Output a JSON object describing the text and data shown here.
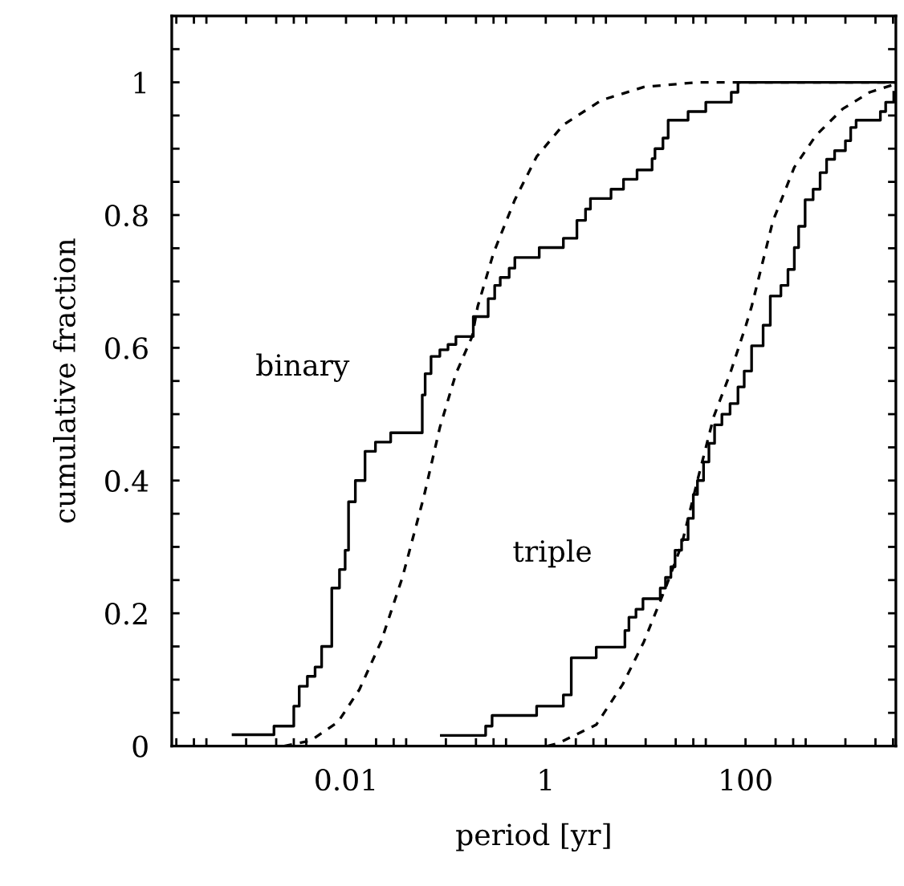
{
  "chart_data": {
    "type": "step",
    "log": "x",
    "xlabel": "period [yr]",
    "ylabel": "cumulative fraction",
    "xlim": [
      0.00018,
      3200
    ],
    "ylim": [
      0,
      1.1
    ],
    "xticks": [
      {
        "value": 0.0002,
        "label": null
      },
      {
        "value": 0.0003,
        "label": null
      },
      {
        "value": 0.0004,
        "label": null
      },
      {
        "value": 0.001,
        "label": null
      },
      {
        "value": 0.002,
        "label": null
      },
      {
        "value": 0.003,
        "label": null
      },
      {
        "value": 0.004,
        "label": null
      },
      0.01,
      {
        "value": 0.02,
        "label": null
      },
      {
        "value": 0.03,
        "label": null
      },
      {
        "value": 0.04,
        "label": null
      },
      {
        "value": 0.1,
        "label": null
      },
      {
        "value": 0.2,
        "label": null
      },
      {
        "value": 0.3,
        "label": null
      },
      {
        "value": 0.4,
        "label": null
      },
      1,
      {
        "value": 2,
        "label": null
      },
      {
        "value": 3,
        "label": null
      },
      {
        "value": 4,
        "label": null
      },
      {
        "value": 10,
        "label": null
      },
      {
        "value": 20,
        "label": null
      },
      {
        "value": 30,
        "label": null
      },
      {
        "value": 40,
        "label": null
      },
      100,
      {
        "value": 200,
        "label": null
      },
      {
        "value": 300,
        "label": null
      },
      {
        "value": 400,
        "label": null
      },
      {
        "value": 1000,
        "label": null
      },
      {
        "value": 2000,
        "label": null
      },
      {
        "value": 3000,
        "label": null
      }
    ],
    "yticks": [
      0,
      {
        "value": 0.05,
        "label": null
      },
      {
        "value": 0.1,
        "label": null
      },
      {
        "value": 0.15,
        "label": null
      },
      0.2,
      {
        "value": 0.25,
        "label": null
      },
      {
        "value": 0.3,
        "label": null
      },
      {
        "value": 0.35,
        "label": null
      },
      0.4,
      {
        "value": 0.45,
        "label": null
      },
      {
        "value": 0.5,
        "label": null
      },
      {
        "value": 0.55,
        "label": null
      },
      0.6,
      {
        "value": 0.65,
        "label": null
      },
      {
        "value": 0.7,
        "label": null
      },
      {
        "value": 0.75,
        "label": null
      },
      0.8,
      {
        "value": 0.85,
        "label": null
      },
      {
        "value": 0.9,
        "label": null
      },
      {
        "value": 0.95,
        "label": null
      },
      1,
      {
        "value": 1.05,
        "label": null
      }
    ],
    "grid": false,
    "series": [
      {
        "name": "binary",
        "line_style": "solid",
        "color": "#000000",
        "x": [
          0.00074,
          0.0019,
          0.003,
          0.0034,
          0.0041,
          0.0049,
          0.0057,
          0.0072,
          0.0086,
          0.0098,
          0.0106,
          0.0124,
          0.0155,
          0.0197,
          0.028,
          0.058,
          0.062,
          0.071,
          0.087,
          0.105,
          0.126,
          0.188,
          0.265,
          0.308,
          0.35,
          0.43,
          0.49,
          0.86,
          1.5,
          2.05,
          2.5,
          2.8,
          4.5,
          6.0,
          8.2,
          11.6,
          12.4,
          14.9,
          16.8,
          26.6,
          40,
          72,
          84,
          3200
        ],
        "values": [
          0.017,
          0.03,
          0.06,
          0.09,
          0.105,
          0.119,
          0.15,
          0.238,
          0.266,
          0.295,
          0.368,
          0.4,
          0.444,
          0.458,
          0.472,
          0.529,
          0.561,
          0.587,
          0.597,
          0.605,
          0.617,
          0.647,
          0.674,
          0.694,
          0.706,
          0.72,
          0.736,
          0.751,
          0.765,
          0.792,
          0.809,
          0.825,
          0.839,
          0.854,
          0.868,
          0.885,
          0.9,
          0.916,
          0.943,
          0.956,
          0.97,
          0.985,
          1.0,
          1.0
        ]
      },
      {
        "name": "triple",
        "line_style": "solid",
        "color": "#000000",
        "x": [
          0.09,
          0.25,
          0.29,
          0.81,
          1.5,
          1.8,
          3.2,
          6.2,
          6.8,
          8.0,
          9.4,
          14,
          15.8,
          17.9,
          19.7,
          22.9,
          26.6,
          30,
          33,
          38,
          43,
          49,
          58,
          70,
          84,
          97,
          115,
          150,
          177,
          226,
          266,
          308,
          340,
          395,
          475,
          558,
          648,
          780,
          1000,
          1130,
          1280,
          2240,
          2530,
          3050
        ],
        "values": [
          0.016,
          0.03,
          0.046,
          0.06,
          0.077,
          0.133,
          0.149,
          0.174,
          0.194,
          0.206,
          0.222,
          0.238,
          0.254,
          0.27,
          0.295,
          0.311,
          0.343,
          0.379,
          0.4,
          0.428,
          0.456,
          0.484,
          0.5,
          0.516,
          0.541,
          0.565,
          0.603,
          0.634,
          0.678,
          0.694,
          0.718,
          0.751,
          0.783,
          0.823,
          0.839,
          0.864,
          0.884,
          0.897,
          0.912,
          0.932,
          0.943,
          0.956,
          0.97,
          0.985
        ]
      },
      {
        "type": "line",
        "line_style": "dashed",
        "color": "#000000",
        "x": [
          0.0024,
          0.0044,
          0.0083,
          0.0136,
          0.0224,
          0.0367,
          0.06,
          0.087,
          0.126,
          0.183,
          0.208,
          0.3,
          0.49,
          0.81,
          1.5,
          3.6,
          9.6,
          33,
          3200
        ],
        "values": [
          0,
          0.008,
          0.036,
          0.085,
          0.157,
          0.254,
          0.375,
          0.48,
          0.561,
          0.617,
          0.662,
          0.743,
          0.823,
          0.888,
          0.936,
          0.973,
          0.993,
          1.0,
          1.0
        ]
      },
      {
        "type": "line",
        "line_style": "dashed",
        "color": "#000000",
        "x": [
          1.04,
          1.33,
          3.2,
          5.9,
          9.6,
          15.8,
          22.9,
          33,
          48,
          70,
          101,
          115,
          188,
          308,
          507,
          940,
          1750,
          3100
        ],
        "values": [
          0,
          0.004,
          0.032,
          0.093,
          0.157,
          0.238,
          0.303,
          0.4,
          0.496,
          0.561,
          0.634,
          0.662,
          0.791,
          0.872,
          0.92,
          0.96,
          0.985,
          0.997
        ]
      }
    ]
  }
}
